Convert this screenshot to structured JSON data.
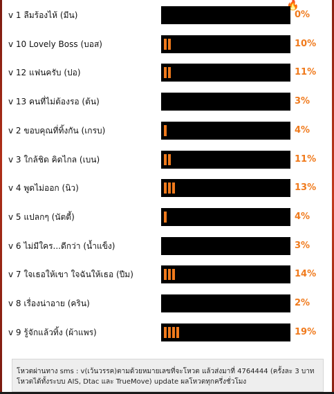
{
  "poll": {
    "items": [
      {
        "label": "v 1 ลืมร้องไห้ (มีน)",
        "percent": "0%",
        "level": 0
      },
      {
        "label": "v 10 Lovely Boss (บอส)",
        "percent": "10%",
        "level": 2
      },
      {
        "label": "v 12 แฟนครับ (ปอ)",
        "percent": "11%",
        "level": 2
      },
      {
        "label": "v 13 คนที่ไม่ต้องรอ (ต้น)",
        "percent": "3%",
        "level": 0
      },
      {
        "label": "v 2 ขอบคุณที่ทิ้งกัน (เกรบ)",
        "percent": "4%",
        "level": 1
      },
      {
        "label": "v 3 ใกล้ชิด คิดไกล (เบน)",
        "percent": "11%",
        "level": 2
      },
      {
        "label": "v 4 พูดไม่ออก (นิว)",
        "percent": "13%",
        "level": 3
      },
      {
        "label": "v 5 แปลกๆ (นัตตี้)",
        "percent": "4%",
        "level": 1
      },
      {
        "label": "v 6 ไม่มีใคร...ดีกว่า (น้ำแข็ง)",
        "percent": "3%",
        "level": 0
      },
      {
        "label": "v 7 ใจเธอให้เขา ใจฉันให้เธอ (ปีม)",
        "percent": "14%",
        "level": 3
      },
      {
        "label": "v 8 เรื่องน่าอาย (คริน)",
        "percent": "2%",
        "level": 0
      },
      {
        "label": "v 9 รู้จักแล้วทิ้ง (ผ้าแพร)",
        "percent": "19%",
        "level": 4
      }
    ]
  },
  "note": {
    "line1": "โหวตผ่านทาง sms : v(เว้นวรรค)ตามด้วยหมายเลขที่จะโหวต แล้วส่งมาที่ 4764444 (ครั้งละ 3 บาท",
    "line2": "โหวตได้ทั้งระบบ AIS, Dtac และ TrueMove) update ผลโหวตทุกครึ่งชั่วโมง"
  },
  "colors": {
    "accent": "#f07a1c",
    "bar": "#000000",
    "note_bg": "#eeeeee"
  }
}
